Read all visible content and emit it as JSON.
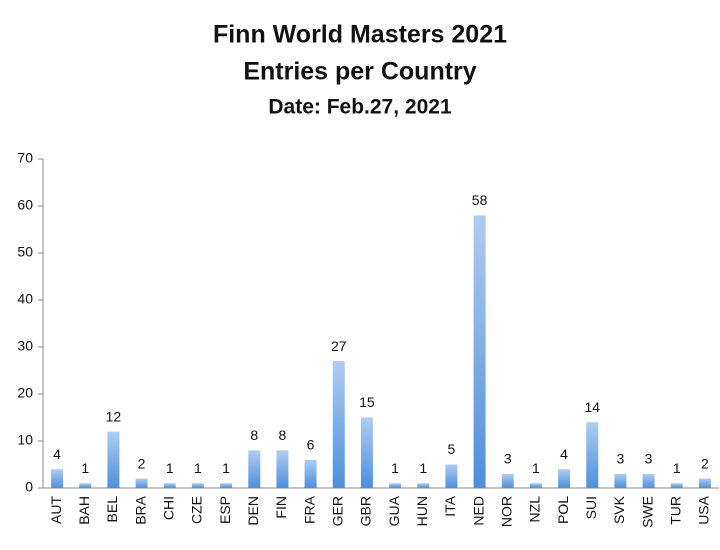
{
  "chart_data": {
    "type": "bar",
    "title": "Finn World Masters 2021",
    "subtitle": "Entries per Country",
    "annotation": "Date: Feb.27, 2021",
    "categories": [
      "AUT",
      "BAH",
      "BEL",
      "BRA",
      "CHI",
      "CZE",
      "ESP",
      "DEN",
      "FIN",
      "FRA",
      "GER",
      "GBR",
      "GUA",
      "HUN",
      "ITA",
      "NED",
      "NOR",
      "NZL",
      "POL",
      "SUI",
      "SVK",
      "SWE",
      "TUR",
      "USA"
    ],
    "values": [
      4,
      1,
      12,
      2,
      1,
      1,
      1,
      8,
      8,
      6,
      27,
      15,
      1,
      1,
      5,
      58,
      3,
      1,
      4,
      14,
      3,
      3,
      1,
      2
    ],
    "color": "#4d8fdc",
    "ylim": [
      0,
      70
    ],
    "yticks": [
      0,
      10,
      20,
      30,
      40,
      50,
      60,
      70
    ],
    "grid": false
  }
}
